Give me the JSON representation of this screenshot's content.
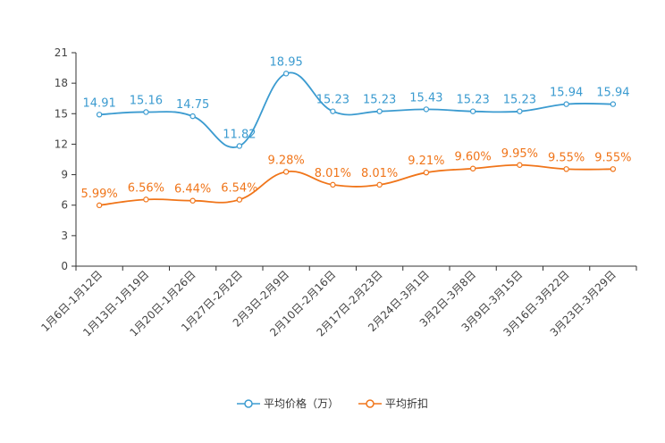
{
  "chart_data": {
    "type": "line",
    "categories": [
      "1月6日-1月12日",
      "1月13日-1月19日",
      "1月20日-1月26日",
      "1月27日-2月2日",
      "2月3日-2月9日",
      "2月10日-2月16日",
      "2月17日-2月23日",
      "2月24日-3月1日",
      "3月2日-3月8日",
      "3月9日-3月15日",
      "3月16日-3月22日",
      "3月23日-3月29日"
    ],
    "ylim": [
      0,
      21
    ],
    "yticks": [
      0,
      3,
      6,
      9,
      12,
      15,
      18,
      21
    ],
    "series": [
      {
        "name": "平均价格（万）",
        "color": "#3b9bd0",
        "values": [
          14.91,
          15.16,
          14.75,
          11.82,
          18.95,
          15.23,
          15.23,
          15.43,
          15.23,
          15.23,
          15.94,
          15.94
        ],
        "labels": [
          "14.91",
          "15.16",
          "14.75",
          "11.82",
          "18.95",
          "15.23",
          "15.23",
          "15.43",
          "15.23",
          "15.23",
          "15.94",
          "15.94"
        ]
      },
      {
        "name": "平均折扣",
        "color": "#f0751a",
        "values": [
          5.99,
          6.56,
          6.44,
          6.54,
          9.28,
          8.01,
          8.01,
          9.21,
          9.6,
          9.95,
          9.55,
          9.55
        ],
        "labels": [
          "5.99%",
          "6.56%",
          "6.44%",
          "6.54%",
          "9.28%",
          "8.01%",
          "8.01%",
          "9.21%",
          "9.60%",
          "9.95%",
          "9.55%",
          "9.55%"
        ]
      }
    ]
  }
}
